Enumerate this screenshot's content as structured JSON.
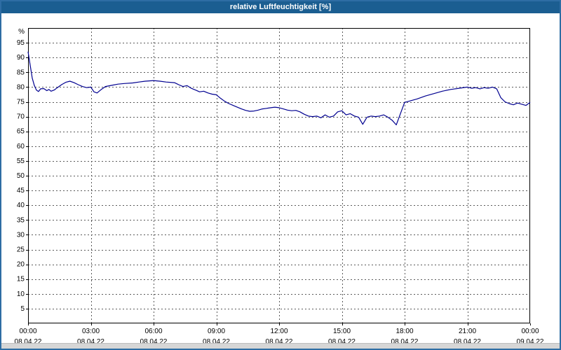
{
  "window": {
    "title": "relative Luftfeuchtigkeit [%]"
  },
  "colors": {
    "titlebar": "#1b5e91",
    "frame_border": "#2e6da4",
    "plot_border": "#000000",
    "grid": "#5a5a5a",
    "line": "#000090",
    "bottom_strip": "#d6d6d6"
  },
  "chart_data": {
    "type": "line",
    "title": "relative Luftfeuchtigkeit [%]",
    "xlabel": "",
    "ylabel": "%",
    "ylim": [
      0,
      100
    ],
    "xlim_hours": [
      0,
      24
    ],
    "grid": true,
    "legend_position": "none",
    "y_ticks": [
      95,
      90,
      85,
      80,
      75,
      70,
      65,
      60,
      55,
      50,
      45,
      40,
      35,
      30,
      25,
      20,
      15,
      10,
      5
    ],
    "x_ticks": [
      {
        "hour": 0,
        "time": "00:00",
        "date": "08.04.22"
      },
      {
        "hour": 3,
        "time": "03:00",
        "date": "08.04.22"
      },
      {
        "hour": 6,
        "time": "06:00",
        "date": "08.04.22"
      },
      {
        "hour": 9,
        "time": "09:00",
        "date": "08.04.22"
      },
      {
        "hour": 12,
        "time": "12:00",
        "date": "08.04.22"
      },
      {
        "hour": 15,
        "time": "15:00",
        "date": "08.04.22"
      },
      {
        "hour": 18,
        "time": "18:00",
        "date": "08.04.22"
      },
      {
        "hour": 21,
        "time": "21:00",
        "date": "08.04.22"
      },
      {
        "hour": 24,
        "time": "00:00",
        "date": "09.04.22"
      }
    ],
    "series": [
      {
        "name": "relative Luftfeuchtigkeit",
        "color": "#000090",
        "points": [
          [
            0,
            92
          ],
          [
            0.1,
            87.5
          ],
          [
            0.2,
            83
          ],
          [
            0.3,
            80.5
          ],
          [
            0.4,
            79
          ],
          [
            0.5,
            78.5
          ],
          [
            0.6,
            79.4
          ],
          [
            0.75,
            79.5
          ],
          [
            0.9,
            78.8
          ],
          [
            1,
            79.2
          ],
          [
            1.1,
            78.6
          ],
          [
            1.25,
            79
          ],
          [
            1.4,
            79.8
          ],
          [
            1.6,
            80.8
          ],
          [
            1.8,
            81.6
          ],
          [
            2,
            82
          ],
          [
            2.2,
            81.5
          ],
          [
            2.4,
            80.8
          ],
          [
            2.6,
            80.2
          ],
          [
            2.8,
            79.8
          ],
          [
            3,
            80
          ],
          [
            3.15,
            78.4
          ],
          [
            3.3,
            78
          ],
          [
            3.5,
            79.2
          ],
          [
            3.7,
            80.2
          ],
          [
            4,
            80.6
          ],
          [
            4.3,
            81
          ],
          [
            4.6,
            81.2
          ],
          [
            5,
            81.4
          ],
          [
            5.3,
            81.7
          ],
          [
            5.6,
            82
          ],
          [
            6,
            82.2
          ],
          [
            6.3,
            82
          ],
          [
            6.6,
            81.7
          ],
          [
            7,
            81.5
          ],
          [
            7.2,
            80.8
          ],
          [
            7.4,
            80.2
          ],
          [
            7.6,
            80.5
          ],
          [
            7.8,
            79.6
          ],
          [
            8,
            79
          ],
          [
            8.2,
            78.4
          ],
          [
            8.4,
            78.6
          ],
          [
            8.6,
            78
          ],
          [
            8.8,
            77.6
          ],
          [
            9,
            77.4
          ],
          [
            9.2,
            76.2
          ],
          [
            9.4,
            75.2
          ],
          [
            9.6,
            74.4
          ],
          [
            9.8,
            73.8
          ],
          [
            10,
            73.2
          ],
          [
            10.2,
            72.6
          ],
          [
            10.4,
            72.1
          ],
          [
            10.6,
            71.8
          ],
          [
            10.8,
            71.9
          ],
          [
            11,
            72.2
          ],
          [
            11.2,
            72.6
          ],
          [
            11.4,
            72.8
          ],
          [
            11.6,
            73
          ],
          [
            11.8,
            73.2
          ],
          [
            12,
            73
          ],
          [
            12.2,
            72.6
          ],
          [
            12.4,
            72.2
          ],
          [
            12.6,
            72
          ],
          [
            12.8,
            72.1
          ],
          [
            13,
            71.6
          ],
          [
            13.2,
            70.8
          ],
          [
            13.4,
            70.2
          ],
          [
            13.6,
            70
          ],
          [
            13.8,
            70.2
          ],
          [
            14,
            69.6
          ],
          [
            14.2,
            70.6
          ],
          [
            14.4,
            69.8
          ],
          [
            14.6,
            70.2
          ],
          [
            14.8,
            71.6
          ],
          [
            15,
            72
          ],
          [
            15.2,
            70.6
          ],
          [
            15.4,
            71
          ],
          [
            15.6,
            70.2
          ],
          [
            15.8,
            69.8
          ],
          [
            16,
            67.4
          ],
          [
            16.2,
            69.8
          ],
          [
            16.4,
            70.2
          ],
          [
            16.6,
            70
          ],
          [
            16.8,
            70.2
          ],
          [
            17,
            70.6
          ],
          [
            17.2,
            69.8
          ],
          [
            17.4,
            68.8
          ],
          [
            17.6,
            67.2
          ],
          [
            17.8,
            71
          ],
          [
            18,
            74.8
          ],
          [
            18.3,
            75.4
          ],
          [
            18.6,
            76
          ],
          [
            19,
            77
          ],
          [
            19.4,
            77.8
          ],
          [
            19.8,
            78.6
          ],
          [
            20.2,
            79.2
          ],
          [
            20.6,
            79.6
          ],
          [
            21,
            80
          ],
          [
            21.2,
            79.6
          ],
          [
            21.4,
            79.8
          ],
          [
            21.6,
            79.4
          ],
          [
            21.8,
            79.8
          ],
          [
            22,
            79.6
          ],
          [
            22.2,
            80
          ],
          [
            22.4,
            79.4
          ],
          [
            22.6,
            76.4
          ],
          [
            22.8,
            75
          ],
          [
            23,
            74.4
          ],
          [
            23.2,
            74
          ],
          [
            23.4,
            74.6
          ],
          [
            23.6,
            74.2
          ],
          [
            23.8,
            73.8
          ],
          [
            24,
            74.8
          ]
        ]
      }
    ]
  }
}
